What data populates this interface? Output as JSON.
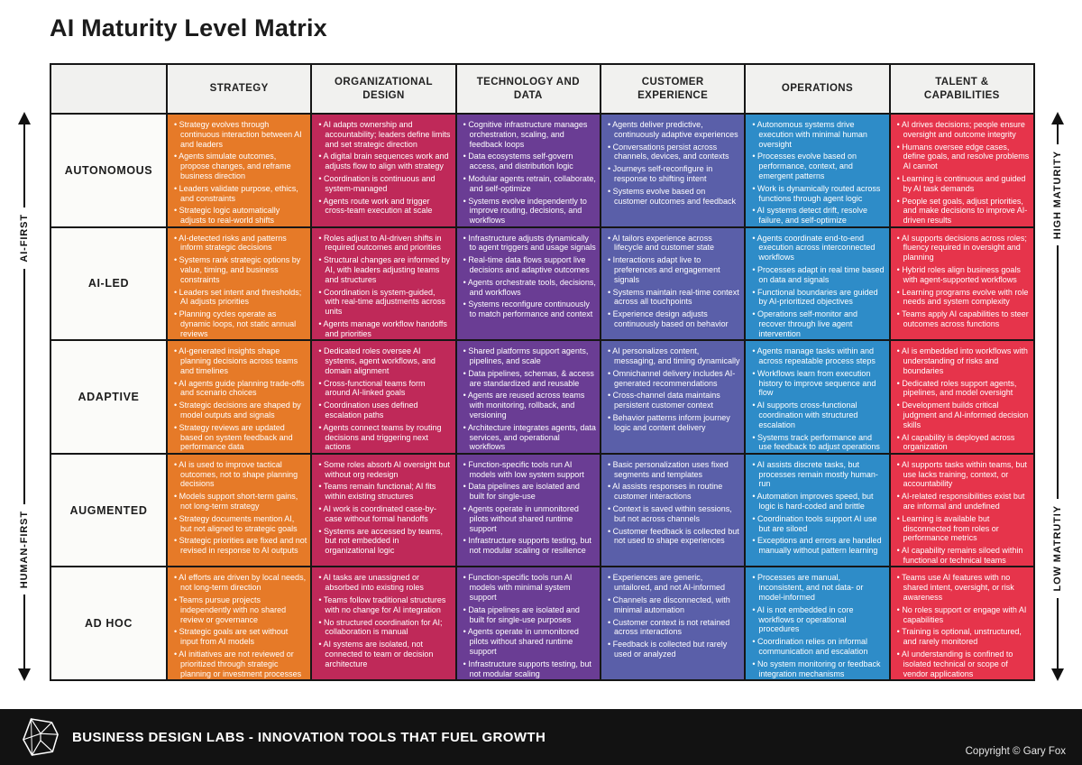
{
  "title": "AI Maturity Level Matrix",
  "axes": {
    "left_top": "AI-FIRST",
    "left_bottom": "HUMAN-FIRST",
    "right_top": "HIGH MATURITY",
    "right_bottom": "LOW MATRUTIY"
  },
  "columns": [
    {
      "label": "STRATEGY",
      "color": "#E67A28"
    },
    {
      "label": "ORGANIZATIONAL DESIGN",
      "color": "#BF2959"
    },
    {
      "label": "TECHNOLOGY AND DATA",
      "color": "#6A3D94"
    },
    {
      "label": "CUSTOMER EXPERIENCE",
      "color": "#5A5FA9"
    },
    {
      "label": "OPERATIONS",
      "color": "#2E8CC8"
    },
    {
      "label": "TALENT & CAPABILITIES",
      "color": "#E6344B"
    }
  ],
  "rows": [
    {
      "label": "AUTONOMOUS",
      "cells": [
        [
          "Strategy evolves through continuous interaction between AI and leaders",
          "Agents simulate outcomes, propose changes, and reframe business direction",
          "Leaders validate purpose, ethics, and constraints",
          "Strategic logic automatically adjusts to real-world shifts"
        ],
        [
          "AI adapts ownership and accountability; leaders define limits and set strategic direction",
          "A digital brain sequences work and adjusts flow to align with strategy",
          "Coordination is continuous and system-managed",
          "Agents route work and trigger cross-team execution at scale"
        ],
        [
          "Cognitive infrastructure manages orchestration, scaling, and feedback loops",
          "Data ecosystems self-govern access, and distribution logic",
          "Modular agents retrain, collaborate, and self-optimize",
          "Systems evolve independently to improve routing, decisions, and workflows"
        ],
        [
          "Agents deliver predictive, continuously adaptive experiences",
          "Conversations persist across channels, devices, and contexts",
          "Journeys self-reconfigure in response to shifting intent",
          "Systems evolve based on customer outcomes and feedback"
        ],
        [
          "Autonomous systems drive execution with minimal human oversight",
          "Processes evolve based on performance, context, and emergent patterns",
          "Work is dynamically routed across functions through agent logic",
          "AI systems detect drift, resolve failure, and self-optimize"
        ],
        [
          "AI drives decisions; people ensure oversight and outcome integrity",
          "Humans oversee edge cases, define goals, and resolve problems AI cannot",
          "Learning is continuous and guided by AI task demands",
          "People set goals, adjust priorities, and make decisions to improve AI-driven results"
        ]
      ]
    },
    {
      "label": "AI-LED",
      "cells": [
        [
          "AI-detected risks and patterns inform strategic decisions",
          "Systems rank strategic options by value, timing, and business constraints",
          "Leaders set intent and thresholds; AI adjusts priorities",
          "Planning cycles operate as dynamic loops, not static annual reviews"
        ],
        [
          "Roles adjust to AI-driven shifts in required outcomes and priorities",
          "Structural changes are informed by AI, with leaders adjusting teams and structures",
          "Coordination is system-guided, with real-time adjustments across units",
          "Agents manage workflow handoffs and priorities"
        ],
        [
          "Infrastructure adjusts dynamically to agent triggers and usage signals",
          "Real-time data flows support live decisions and adaptive outcomes",
          "Agents orchestrate tools, decisions, and workflows",
          "Systems reconfigure continuously to match performance and context"
        ],
        [
          "AI tailors experience across lifecycle and customer state",
          "Interactions adapt live to preferences and engagement signals",
          "Systems maintain real-time context across all touchpoints",
          "Experience design adjusts continuously based on behavior"
        ],
        [
          "Agents coordinate end-to-end execution across interconnected workflows",
          "Processes adapt in real time based on data and signals",
          "Functional boundaries are guided by AI-prioritized objectives",
          "Operations self-monitor and recover through live agent intervention"
        ],
        [
          "AI supports decisions across roles; fluency required in oversight and planning",
          "Hybrid roles align business goals with agent-supported workflows",
          "Learning programs evolve with role needs and system complexity",
          "Teams apply AI capabilities to steer outcomes across functions"
        ]
      ]
    },
    {
      "label": "ADAPTIVE",
      "cells": [
        [
          "AI-generated insights shape planning decisions across teams and timelines",
          "AI agents guide planning trade-offs and scenario choices",
          "Strategic decisions are shaped by model outputs and signals",
          "Strategy reviews are updated based on system feedback and performance data"
        ],
        [
          "Dedicated roles oversee AI systems, agent workflows, and domain alignment",
          "Cross-functional teams form around AI-linked goals",
          "Coordination uses defined escalation paths",
          "Agents connect teams by routing decisions and triggering next actions"
        ],
        [
          "Shared platforms support agents, pipelines, and scale",
          "Data pipelines, schemas, & access are standardized and reusable",
          "Agents are reused across teams with monitoring, rollback, and versioning",
          "Architecture integrates agents, data services, and operational workflows"
        ],
        [
          "AI personalizes content, messaging, and timing dynamically",
          "Omnichannel delivery includes AI-generated recommendations",
          "Cross-channel data maintains persistent customer context",
          "Behavior patterns inform journey logic and content delivery"
        ],
        [
          "Agents manage tasks within and across repeatable process steps",
          "Workflows learn from execution history to improve sequence and flow",
          "AI supports cross-functional coordination with structured escalation",
          "Systems track performance and use feedback to adjust operations"
        ],
        [
          "AI is embedded into workflows with understanding of risks and boundaries",
          "Dedicated roles support agents, pipelines, and model oversight",
          "Development builds critical judgment and AI-informed decision skills",
          "AI capability is deployed across organization"
        ]
      ]
    },
    {
      "label": "AUGMENTED",
      "cells": [
        [
          "AI is used to improve tactical outcomes, not to shape planning decisions",
          "Models support short-term gains, not long-term strategy",
          "Strategy documents mention AI, but not aligned to strategic goals",
          "Strategic priorities are fixed and not revised in response to AI outputs"
        ],
        [
          "Some roles absorb AI oversight but without org redesign",
          "Teams remain functional; AI fits within existing structures",
          "AI work is coordinated case-by-case without formal handoffs",
          "Systems are accessed by teams, but not embedded in organizational logic"
        ],
        [
          "Function-specific tools run AI models with low system support",
          "Data pipelines are isolated and built for single-use",
          "Agents operate in unmonitored pilots without shared runtime support",
          "Infrastructure supports testing, but not modular scaling or resilience"
        ],
        [
          "Basic personalization uses fixed segments and templates",
          "AI assists responses in routine customer interactions",
          "Context is saved within sessions, but not across channels",
          "Customer feedback is collected but not used to shape experiences"
        ],
        [
          "AI assists discrete tasks, but processes remain mostly human-run",
          "Automation improves speed, but logic is hard-coded and brittle",
          "Coordination tools support AI use but are siloed",
          "Exceptions and errors are handled manually without pattern learning"
        ],
        [
          "AI supports tasks within teams, but use lacks training, context, or accountability",
          "AI-related responsibilities exist but are informal and undefined",
          "Learning is available but disconnected from roles or performance metrics",
          "AI capability remains siloed within functional or technical teams"
        ]
      ]
    },
    {
      "label": "AD HOC",
      "cells": [
        [
          "AI efforts are driven by local needs, not long-term direction",
          "Teams pursue projects independently with no shared review or governance",
          "Strategic goals are set without input from AI models",
          "AI initiatives are not reviewed or prioritized through strategic planning or investment processes"
        ],
        [
          "AI tasks are unassigned or absorbed into existing roles",
          "Teams follow traditional structures with no change for AI integration",
          "No structured coordination for AI; collaboration is manual",
          "AI systems are isolated, not connected to team or decision architecture"
        ],
        [
          "Function-specific tools run AI models with minimal system support",
          "Data pipelines are isolated and built for single-use purposes",
          "Agents operate in unmonitored pilots without shared runtime support",
          "Infrastructure supports testing, but not modular scaling"
        ],
        [
          "Experiences are generic, untailored, and not AI-informed",
          "Channels are disconnected, with minimal automation",
          "Customer context is not retained across interactions",
          "Feedback is collected but rarely used or analyzed"
        ],
        [
          "Processes are manual, inconsistent, and not data- or model-informed",
          "AI is not embedded in core workflows or operational procedures",
          "Coordination relies on informal communication and escalation",
          "No system monitoring or feedback integration mechanisms"
        ],
        [
          "Teams use AI features with no shared intent, oversight, or risk awareness",
          "No roles support or engage with AI capabilities",
          "Training is optional, unstructured, and rarely monitored",
          "AI understanding is confined to isolated technical or scope of vendor applications"
        ]
      ]
    }
  ],
  "footer": {
    "brand": "BUSINESS DESIGN LABS - INNOVATION TOOLS THAT FUEL GROWTH",
    "copyright": "Copyright © Gary Fox"
  }
}
